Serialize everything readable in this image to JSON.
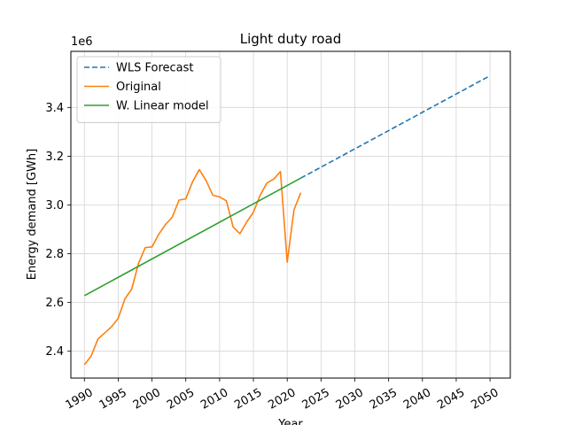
{
  "chart_data": {
    "type": "line",
    "title": "Light duty road",
    "xlabel": "Year",
    "ylabel": "Energy demand [GWh]",
    "y_offset_label": "1e6",
    "y_scale": 1000000,
    "xlim": [
      1988,
      2053
    ],
    "ylim": [
      2.29,
      3.63
    ],
    "x_ticks": [
      1990,
      1995,
      2000,
      2005,
      2010,
      2015,
      2020,
      2025,
      2030,
      2035,
      2040,
      2045,
      2050
    ],
    "y_ticks": [
      2.4,
      2.6,
      2.8,
      3.0,
      3.2,
      3.4
    ],
    "y_tick_labels": [
      "2.4",
      "2.6",
      "2.8",
      "3.0",
      "3.2",
      "3.4"
    ],
    "grid": true,
    "legend_position": "top-left",
    "series": [
      {
        "name": "WLS Forecast",
        "color": "#1f77b4",
        "style": "dashed",
        "x": [
          2022,
          2050
        ],
        "y": [
          3.11,
          3.53
        ]
      },
      {
        "name": "Original",
        "color": "#ff7f0e",
        "style": "solid",
        "x": [
          1990,
          1991,
          1992,
          1993,
          1994,
          1995,
          1996,
          1997,
          1998,
          1999,
          2000,
          2001,
          2002,
          2003,
          2004,
          2005,
          2006,
          2007,
          2008,
          2009,
          2010,
          2011,
          2012,
          2013,
          2014,
          2015,
          2016,
          2017,
          2018,
          2019,
          2020,
          2021,
          2022
        ],
        "y": [
          2.345,
          2.38,
          2.45,
          2.475,
          2.5,
          2.535,
          2.615,
          2.655,
          2.76,
          2.825,
          2.828,
          2.88,
          2.92,
          2.95,
          3.02,
          3.025,
          3.095,
          3.145,
          3.1,
          3.04,
          3.033,
          3.017,
          2.91,
          2.882,
          2.93,
          2.97,
          3.04,
          3.09,
          3.106,
          3.137,
          2.765,
          2.98,
          3.05
        ]
      },
      {
        "name": "W. Linear model",
        "color": "#2ca02c",
        "style": "solid",
        "x": [
          1990,
          2022
        ],
        "y": [
          2.628,
          3.11
        ]
      }
    ]
  }
}
